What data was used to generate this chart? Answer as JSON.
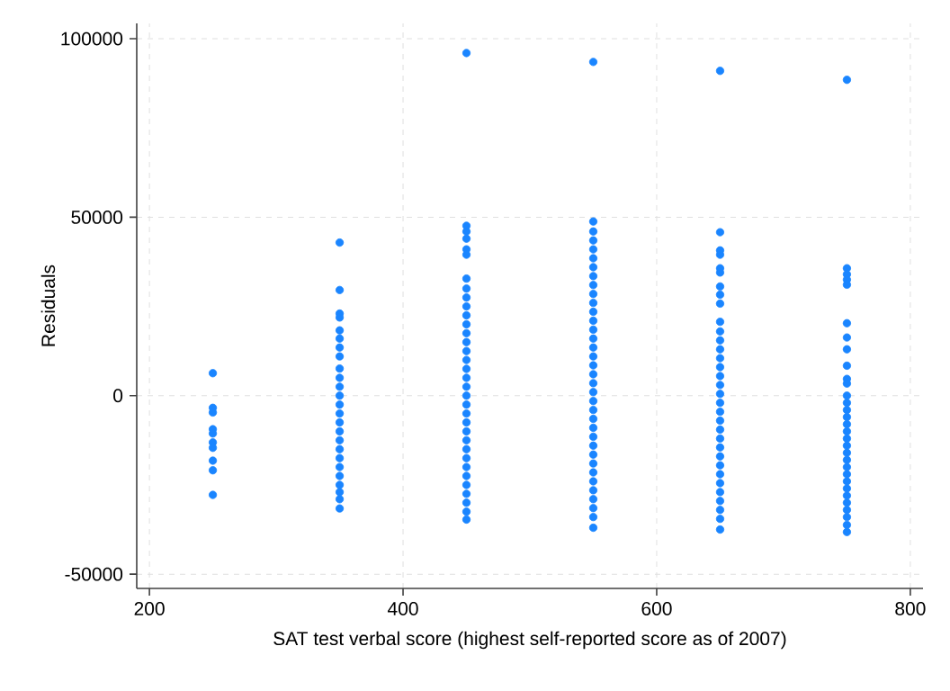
{
  "chart_data": {
    "type": "scatter",
    "xlabel": "SAT test verbal score (highest self-reported score as of 2007)",
    "ylabel": "Residuals",
    "xlim": [
      190,
      810
    ],
    "xticks": [
      200,
      400,
      600,
      800
    ],
    "ylim": [
      -54000,
      104300
    ],
    "yticks": [
      -50000,
      0,
      50000,
      100000
    ],
    "grid": true,
    "marker": "circle",
    "series": [
      {
        "color": "#1a85ff",
        "x": [
          250,
          250,
          250,
          250,
          250,
          250,
          250,
          250,
          250,
          250,
          350,
          350,
          350,
          350,
          350,
          350,
          350,
          350,
          350,
          350,
          350,
          350,
          350,
          350,
          350,
          350,
          350,
          350,
          350,
          350,
          350,
          350,
          350,
          350,
          350,
          450,
          450,
          450,
          450,
          450,
          450,
          450,
          450,
          450,
          450,
          450,
          450,
          450,
          450,
          450,
          450,
          450,
          450,
          450,
          450,
          450,
          450,
          450,
          450,
          450,
          450,
          450,
          450,
          450,
          450,
          450,
          450,
          450,
          450,
          550,
          550,
          550,
          550,
          550,
          550,
          550,
          550,
          550,
          550,
          550,
          550,
          550,
          550,
          550,
          550,
          550,
          550,
          550,
          550,
          550,
          550,
          550,
          550,
          550,
          550,
          550,
          550,
          550,
          550,
          550,
          550,
          550,
          550,
          550,
          550,
          650,
          650,
          650,
          650,
          650,
          650,
          650,
          650,
          650,
          650,
          650,
          650,
          650,
          650,
          650,
          650,
          650,
          650,
          650,
          650,
          650,
          650,
          650,
          650,
          650,
          650,
          650,
          650,
          650,
          650,
          650,
          650,
          650,
          750,
          750,
          750,
          750,
          750,
          750,
          750,
          750,
          750,
          750,
          750,
          750,
          750,
          750,
          750,
          750,
          750,
          750,
          750,
          750,
          750,
          750,
          750,
          750,
          750,
          750,
          750,
          750,
          750,
          750,
          750
        ],
        "values": [
          6300,
          -3400,
          -4700,
          -9400,
          -10600,
          -13100,
          -14600,
          -18200,
          -20900,
          -27800,
          42900,
          29600,
          23000,
          21900,
          18300,
          16000,
          13500,
          11000,
          7600,
          5000,
          2500,
          0,
          -2500,
          -5000,
          -7500,
          -10000,
          -12500,
          -15000,
          -17500,
          -20000,
          -22500,
          -25000,
          -27000,
          -29000,
          -31600,
          96000,
          47600,
          46000,
          44000,
          41000,
          39500,
          32800,
          30000,
          27500,
          25000,
          22500,
          20000,
          17500,
          15000,
          12500,
          10000,
          7500,
          5000,
          2500,
          0,
          -2500,
          -5000,
          -7500,
          -10000,
          -12500,
          -15000,
          -17500,
          -20000,
          -22500,
          -25000,
          -27500,
          -30000,
          -32500,
          -34700,
          93500,
          48800,
          46000,
          43500,
          41000,
          38500,
          36000,
          33500,
          31000,
          28500,
          26000,
          23500,
          21000,
          18500,
          16000,
          13500,
          11000,
          8500,
          6000,
          3500,
          1000,
          -1500,
          -4000,
          -6500,
          -9000,
          -11500,
          -14000,
          -16500,
          -19000,
          -21500,
          -24000,
          -26500,
          -29000,
          -31500,
          -34000,
          -37000,
          91000,
          45800,
          40700,
          39500,
          35700,
          34500,
          30600,
          28300,
          25800,
          20700,
          18000,
          15500,
          13000,
          10500,
          8000,
          5500,
          3000,
          500,
          -2000,
          -4500,
          -7000,
          -9500,
          -12000,
          -14500,
          -17000,
          -19500,
          -22000,
          -24500,
          -27000,
          -29500,
          -32000,
          -34500,
          -37500,
          88500,
          35700,
          34000,
          32500,
          31100,
          20300,
          16300,
          13000,
          8400,
          4700,
          3400,
          0,
          -2000,
          -4000,
          -6000,
          -8000,
          -10000,
          -12000,
          -14000,
          -16000,
          -18000,
          -20000,
          -22000,
          -24000,
          -26000,
          -28000,
          -30000,
          -32000,
          -34000,
          -36200,
          -38200
        ]
      }
    ]
  }
}
